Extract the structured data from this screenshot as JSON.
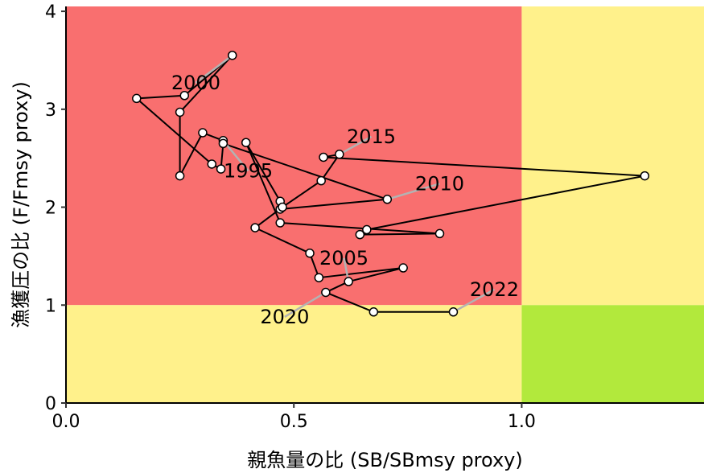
{
  "chart_data": {
    "type": "scatter",
    "xlabel": "親魚量の比 (SB/SBmsy proxy)",
    "ylabel": "漁獲圧の比 (F/Fmsy proxy)",
    "xlim": [
      0,
      1.4
    ],
    "ylim": [
      0,
      4.05
    ],
    "x_ticks": [
      "0.0",
      "0.5",
      "1.0"
    ],
    "y_ticks": [
      "0",
      "1",
      "2",
      "3",
      "4"
    ],
    "grid": false,
    "zones": [
      {
        "name": "overfished-overfishing",
        "x": [
          0,
          1.0
        ],
        "y": [
          1,
          4.05
        ],
        "color": "#F96F6F"
      },
      {
        "name": "healthy-overfishing",
        "x": [
          1.0,
          1.4
        ],
        "y": [
          1,
          4.05
        ],
        "color": "#FFF18B"
      },
      {
        "name": "overfished-sustainable",
        "x": [
          0,
          1.0
        ],
        "y": [
          0,
          1
        ],
        "color": "#FFF18B"
      },
      {
        "name": "healthy-sustainable",
        "x": [
          1.0,
          1.4
        ],
        "y": [
          0,
          1
        ],
        "color": "#B2E93C"
      }
    ],
    "series": [
      {
        "points": [
          {
            "x": 0.345,
            "y": 2.68
          },
          {
            "x": 0.3,
            "y": 2.76
          },
          {
            "x": 0.25,
            "y": 2.32
          },
          {
            "x": 0.25,
            "y": 2.97
          },
          {
            "x": 0.365,
            "y": 3.55
          },
          {
            "x": 0.26,
            "y": 3.14
          },
          {
            "x": 0.155,
            "y": 3.11
          },
          {
            "x": 0.32,
            "y": 2.44
          },
          {
            "x": 0.34,
            "y": 2.39
          },
          {
            "x": 0.345,
            "y": 2.65
          },
          {
            "x": 0.705,
            "y": 2.08
          },
          {
            "x": 0.47,
            "y": 1.98
          },
          {
            "x": 0.47,
            "y": 2.06
          },
          {
            "x": 0.395,
            "y": 2.66
          },
          {
            "x": 0.47,
            "y": 1.84
          },
          {
            "x": 0.82,
            "y": 1.73
          },
          {
            "x": 0.645,
            "y": 1.72
          },
          {
            "x": 0.66,
            "y": 1.77
          },
          {
            "x": 1.27,
            "y": 2.32
          },
          {
            "x": 0.565,
            "y": 2.51
          },
          {
            "x": 0.6,
            "y": 2.54
          },
          {
            "x": 0.56,
            "y": 2.27
          },
          {
            "x": 0.475,
            "y": 2.0
          },
          {
            "x": 0.415,
            "y": 1.79
          },
          {
            "x": 0.535,
            "y": 1.53
          },
          {
            "x": 0.555,
            "y": 1.28
          },
          {
            "x": 0.74,
            "y": 1.38
          },
          {
            "x": 0.62,
            "y": 1.24
          },
          {
            "x": 0.57,
            "y": 1.13
          },
          {
            "x": 0.675,
            "y": 0.93
          },
          {
            "x": 0.85,
            "y": 0.93
          }
        ]
      }
    ],
    "year_labels": [
      {
        "text": "1995",
        "point": {
          "x": 0.345,
          "y": 2.68
        },
        "anchor": {
          "x": 0.4,
          "y": 2.37
        }
      },
      {
        "text": "2000",
        "point": {
          "x": 0.365,
          "y": 3.55
        },
        "anchor": {
          "x": 0.285,
          "y": 3.27
        }
      },
      {
        "text": "2005",
        "point": {
          "x": 0.62,
          "y": 1.24
        },
        "anchor": {
          "x": 0.61,
          "y": 1.48
        }
      },
      {
        "text": "2010",
        "point": {
          "x": 0.705,
          "y": 2.08
        },
        "anchor": {
          "x": 0.82,
          "y": 2.24
        }
      },
      {
        "text": "2015",
        "point": {
          "x": 0.6,
          "y": 2.54
        },
        "anchor": {
          "x": 0.67,
          "y": 2.72
        }
      },
      {
        "text": "2020",
        "point": {
          "x": 0.57,
          "y": 1.13
        },
        "anchor": {
          "x": 0.48,
          "y": 0.88
        }
      },
      {
        "text": "2022",
        "point": {
          "x": 0.85,
          "y": 0.93
        },
        "anchor": {
          "x": 0.94,
          "y": 1.16
        }
      }
    ],
    "colors": {
      "line": "#000000",
      "marker_fill": "#ffffff",
      "marker_stroke": "#000000",
      "leader_line": "#B3B3B3"
    }
  }
}
